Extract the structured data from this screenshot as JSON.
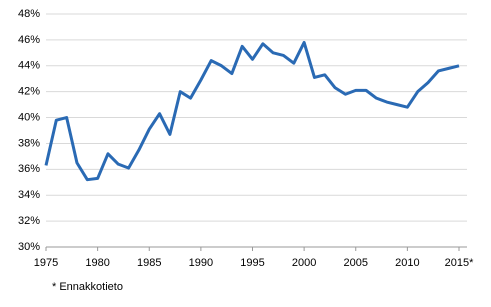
{
  "chart_data": {
    "type": "line",
    "note": "* Ennakkotieto",
    "x": [
      1975,
      1976,
      1977,
      1978,
      1979,
      1980,
      1981,
      1982,
      1983,
      1984,
      1985,
      1986,
      1987,
      1988,
      1989,
      1990,
      1991,
      1992,
      1993,
      1994,
      1995,
      1996,
      1997,
      1998,
      1999,
      2000,
      2001,
      2002,
      2003,
      2004,
      2005,
      2006,
      2007,
      2008,
      2009,
      2010,
      2011,
      2012,
      2013,
      2014,
      2015
    ],
    "series": [
      {
        "color": "#2a6ab4",
        "values": [
          36.3,
          39.8,
          40.0,
          36.5,
          35.2,
          35.3,
          37.2,
          36.4,
          36.1,
          37.5,
          39.1,
          40.3,
          38.7,
          42.0,
          41.5,
          42.9,
          44.4,
          44.0,
          43.4,
          45.5,
          44.5,
          45.7,
          45.0,
          44.8,
          44.2,
          45.8,
          43.1,
          43.3,
          42.3,
          41.8,
          42.1,
          42.1,
          41.5,
          41.2,
          41.0,
          40.8,
          42.0,
          42.7,
          43.6,
          43.8,
          44.0
        ]
      }
    ],
    "xlim": [
      1975,
      2015
    ],
    "xticks": [
      1975,
      1980,
      1985,
      1990,
      1995,
      2000,
      2005,
      2010,
      {
        "value": 2015,
        "label": "2015*"
      }
    ],
    "ylim": [
      30,
      48
    ],
    "yticks": [
      {
        "value": 30,
        "label": "30%"
      },
      {
        "value": 32,
        "label": "32%"
      },
      {
        "value": 34,
        "label": "34%"
      },
      {
        "value": 36,
        "label": "36%"
      },
      {
        "value": 38,
        "label": "38%"
      },
      {
        "value": 40,
        "label": "40%"
      },
      {
        "value": 42,
        "label": "42%"
      },
      {
        "value": 44,
        "label": "44%"
      },
      {
        "value": 46,
        "label": "46%"
      },
      {
        "value": 48,
        "label": "48%"
      }
    ],
    "grid": true
  }
}
